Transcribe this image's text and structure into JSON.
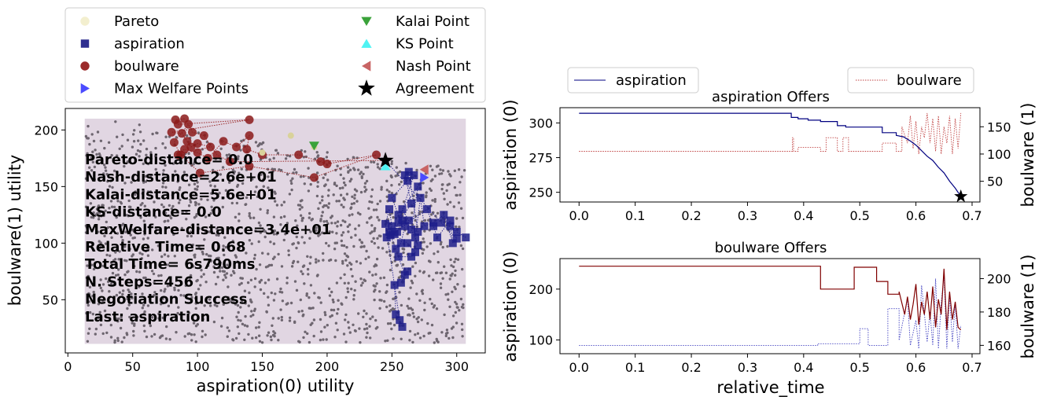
{
  "chart_data": [
    {
      "type": "scatter",
      "xlabel": "aspiration(0) utility",
      "ylabel": "boulware(1) utility",
      "xlim": [
        -2,
        322
      ],
      "ylim": [
        3,
        219
      ],
      "xticks": [
        0,
        50,
        100,
        150,
        200,
        250,
        300
      ],
      "yticks": [
        50,
        100,
        150,
        200
      ],
      "region": {
        "x": [
          13,
          307
        ],
        "y": [
          11,
          210
        ],
        "color": "#e1d6e2"
      },
      "legend": {
        "placement": "top",
        "entries": [
          {
            "label": "Pareto",
            "marker": "circle",
            "color": "#f3efcf"
          },
          {
            "label": "Kalai Point",
            "marker": "triangle-down",
            "color": "#3aa23a"
          },
          {
            "label": "aspiration",
            "marker": "square",
            "color": "#2e2e8f"
          },
          {
            "label": "KS Point",
            "marker": "triangle-up",
            "color": "#4ff3f3"
          },
          {
            "label": "boulware",
            "marker": "circle",
            "color": "#9b2a2a"
          },
          {
            "label": "Nash Point",
            "marker": "triangle-left",
            "color": "#c86464"
          },
          {
            "label": "Max Welfare Points",
            "marker": "triangle-right",
            "color": "#4b4bff"
          },
          {
            "label": "Agreement",
            "marker": "star",
            "color": "#000000"
          }
        ]
      },
      "aspiration_offers": [
        [
          307,
          105
        ],
        [
          300,
          110
        ],
        [
          295,
          115
        ],
        [
          297,
          100
        ],
        [
          290,
          125
        ],
        [
          282,
          118
        ],
        [
          275,
          115
        ],
        [
          272,
          140
        ],
        [
          268,
          105
        ],
        [
          270,
          98
        ],
        [
          265,
          112
        ],
        [
          270,
          150
        ],
        [
          258,
          130
        ],
        [
          263,
          120
        ],
        [
          255,
          118
        ],
        [
          265,
          135
        ],
        [
          260,
          160
        ],
        [
          262,
          155
        ],
        [
          250,
          140
        ],
        [
          255,
          125
        ],
        [
          260,
          115
        ],
        [
          257,
          100
        ],
        [
          253,
          95
        ],
        [
          248,
          110
        ],
        [
          262,
          100
        ],
        [
          268,
          92
        ],
        [
          265,
          88
        ],
        [
          255,
          88
        ],
        [
          260,
          72
        ],
        [
          257,
          65
        ],
        [
          262,
          75
        ],
        [
          252,
          63
        ],
        [
          253,
          37
        ],
        [
          258,
          26
        ],
        [
          256,
          32
        ],
        [
          245,
          117
        ],
        [
          248,
          130
        ],
        [
          250,
          115
        ],
        [
          246,
          105
        ],
        [
          252,
          108
        ],
        [
          267,
          160
        ],
        [
          263,
          163
        ],
        [
          270,
          110
        ],
        [
          258,
          120
        ],
        [
          254,
          110
        ],
        [
          249,
          107
        ],
        [
          277,
          130
        ],
        [
          282,
          115
        ],
        [
          285,
          105
        ],
        [
          295,
          120
        ],
        [
          300,
          104
        ],
        [
          288,
          118
        ]
      ],
      "boulware_offers": [
        [
          90,
          210
        ],
        [
          83,
          209
        ],
        [
          85,
          205
        ],
        [
          140,
          209
        ],
        [
          80,
          198
        ],
        [
          88,
          197
        ],
        [
          92,
          190
        ],
        [
          95,
          185
        ],
        [
          100,
          188
        ],
        [
          110,
          185
        ],
        [
          85,
          178
        ],
        [
          90,
          183
        ],
        [
          100,
          180
        ],
        [
          108,
          175
        ],
        [
          120,
          190
        ],
        [
          130,
          185
        ],
        [
          140,
          195
        ],
        [
          138,
          183
        ],
        [
          150,
          178
        ],
        [
          178,
          178
        ],
        [
          195,
          172
        ],
        [
          200,
          170
        ],
        [
          238,
          178
        ],
        [
          190,
          158
        ],
        [
          140,
          168
        ],
        [
          102,
          162
        ],
        [
          87,
          178
        ],
        [
          82,
          189
        ],
        [
          93,
          205
        ],
        [
          96,
          198
        ],
        [
          105,
          195
        ],
        [
          115,
          178
        ],
        [
          125,
          172
        ]
      ],
      "pareto": [
        [
          172,
          195
        ],
        [
          150,
          180
        ],
        [
          190,
          185
        ]
      ],
      "kalai": [
        190,
        186
      ],
      "ks": [
        245,
        168
      ],
      "nash": [
        275,
        165
      ],
      "max_welfare": [
        275,
        158
      ],
      "agreement": [
        245,
        173
      ],
      "annotation": [
        "Pareto-distance=  0.0",
        "Nash-distance=2.6e+01",
        "Kalai-distance=5.6e+01",
        "KS-distance=  0.0",
        "MaxWelfare-distance=3.4e+01",
        "Relative Time= 0.68",
        "Total Time= 6s790ms",
        "N. Steps=456",
        "Negotiation Success",
        "Last: aspiration"
      ]
    },
    {
      "type": "line",
      "title": "aspiration Offers",
      "legend_left": "aspiration",
      "legend_right": "boulware",
      "ylabel_left": "aspiration (0)",
      "ylabel_right": "boulware (1)",
      "xlim": [
        -0.034,
        0.714
      ],
      "xticks": [
        0.0,
        0.1,
        0.2,
        0.3,
        0.4,
        0.5,
        0.6,
        0.7
      ],
      "ylim_left": [
        243,
        311
      ],
      "yticks_left": [
        250,
        275,
        300
      ],
      "ylim_right": [
        12,
        185
      ],
      "yticks_right": [
        50,
        100,
        150
      ],
      "series_left": {
        "name": "aspiration",
        "color": "#000080",
        "x": [
          0,
          0.378,
          0.378,
          0.39,
          0.39,
          0.408,
          0.408,
          0.43,
          0.43,
          0.46,
          0.46,
          0.475,
          0.475,
          0.54,
          0.54,
          0.565,
          0.565,
          0.578,
          0.59,
          0.6,
          0.61,
          0.62,
          0.63,
          0.64,
          0.65,
          0.66,
          0.67,
          0.68
        ],
        "y": [
          307,
          307,
          304,
          304,
          303,
          303,
          302,
          302,
          301,
          301,
          298,
          298,
          297,
          297,
          293,
          293,
          291,
          290,
          287,
          284,
          280,
          276,
          273,
          268,
          264,
          258,
          253,
          247
        ]
      },
      "series_right": {
        "name": "boulware",
        "color": "#c04040",
        "x": [
          0,
          0.38,
          0.38,
          0.382,
          0.382,
          0.39,
          0.39,
          0.43,
          0.43,
          0.44,
          0.44,
          0.46,
          0.46,
          0.47,
          0.47,
          0.48,
          0.48,
          0.54,
          0.54,
          0.565,
          0.565,
          0.575,
          0.575,
          0.585,
          0.59,
          0.595,
          0.6,
          0.605,
          0.61,
          0.615,
          0.62,
          0.625,
          0.63,
          0.635,
          0.64,
          0.645,
          0.65,
          0.655,
          0.66,
          0.665,
          0.67,
          0.675,
          0.68
        ],
        "y": [
          105,
          105,
          130,
          130,
          105,
          105,
          112,
          112,
          105,
          105,
          130,
          130,
          105,
          105,
          130,
          130,
          105,
          105,
          120,
          120,
          105,
          105,
          150,
          120,
          170,
          110,
          160,
          100,
          150,
          130,
          175,
          120,
          165,
          105,
          170,
          100,
          150,
          120,
          170,
          100,
          165,
          110,
          175
        ]
      },
      "agreement": [
        0.68,
        247
      ]
    },
    {
      "type": "line",
      "title": "boulware Offers",
      "xlabel": "relative_time",
      "ylabel_left": "aspiration (0)",
      "ylabel_right": "boulware (1)",
      "xlim": [
        -0.034,
        0.714
      ],
      "xticks": [
        0.0,
        0.1,
        0.2,
        0.3,
        0.4,
        0.5,
        0.6,
        0.7
      ],
      "ylim_left": [
        73,
        260
      ],
      "yticks_left": [
        100,
        200
      ],
      "ylim_right": [
        155,
        212
      ],
      "yticks_right": [
        160,
        180,
        200
      ],
      "series_left": {
        "name": "boulware",
        "color": "#800000",
        "x": [
          0,
          0.43,
          0.43,
          0.49,
          0.49,
          0.53,
          0.53,
          0.55,
          0.55,
          0.57,
          0.57,
          0.58,
          0.585,
          0.59,
          0.595,
          0.6,
          0.605,
          0.61,
          0.615,
          0.62,
          0.625,
          0.63,
          0.635,
          0.64,
          0.645,
          0.65,
          0.655,
          0.66,
          0.665,
          0.67,
          0.675,
          0.68
        ],
        "y": [
          245,
          245,
          200,
          200,
          243,
          243,
          215,
          215,
          190,
          190,
          195,
          150,
          185,
          140,
          170,
          210,
          130,
          175,
          150,
          195,
          140,
          205,
          125,
          180,
          150,
          240,
          120,
          195,
          140,
          175,
          125,
          120
        ]
      },
      "series_right": {
        "name": "aspiration",
        "color": "#4040c0",
        "x": [
          0,
          0.425,
          0.425,
          0.5,
          0.5,
          0.515,
          0.515,
          0.55,
          0.55,
          0.57,
          0.57,
          0.585,
          0.59,
          0.6,
          0.605,
          0.61,
          0.62,
          0.625,
          0.63,
          0.635,
          0.64,
          0.645,
          0.65,
          0.655,
          0.66,
          0.665,
          0.67,
          0.675,
          0.68
        ],
        "y": [
          160,
          160,
          161,
          161,
          170,
          170,
          160,
          160,
          182,
          182,
          163,
          188,
          160,
          175,
          158,
          196,
          162,
          180,
          160,
          200,
          158,
          185,
          202,
          158,
          190,
          162,
          185,
          158,
          172
        ]
      }
    }
  ]
}
